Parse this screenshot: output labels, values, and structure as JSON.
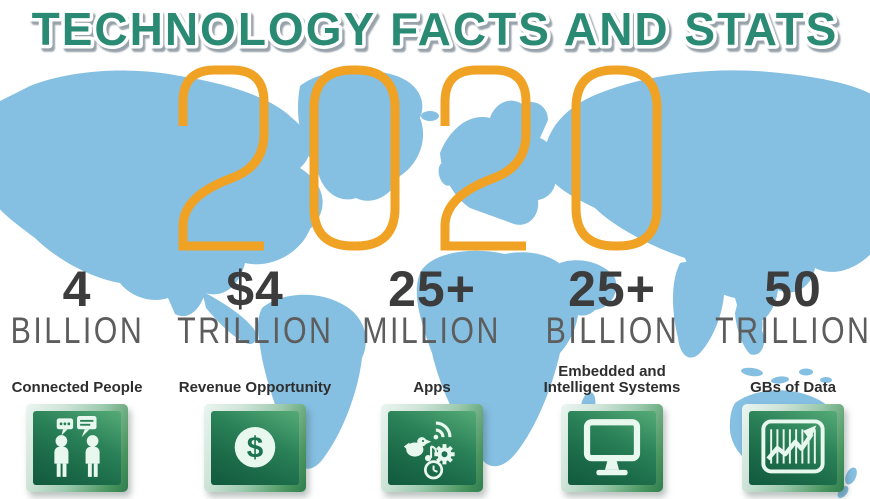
{
  "title": "TECHNOLOGY FACTS AND STATS",
  "year": "2020",
  "colors": {
    "title_teal": "#2b8a73",
    "year_orange": "#f0a225",
    "map_blue": "#85bfe2",
    "stat_number": "#3c3c3c",
    "stat_unit": "#5d5d5d",
    "stat_label": "#2e2e2e",
    "tile_green_dark": "#125a3e",
    "tile_green_light": "#55ab76",
    "icon_white": "#e9f8ef"
  },
  "stats": [
    {
      "value": "4",
      "unit": "BILLION",
      "label": "Connected People",
      "icon": "connected-people-icon"
    },
    {
      "value": "$4",
      "unit": "TRILLION",
      "label": "Revenue Opportunity",
      "icon": "dollar-icon",
      "glyph": "$"
    },
    {
      "value": "25+",
      "unit": "MILLION",
      "label": "Apps",
      "icon": "apps-icon"
    },
    {
      "value": "25+",
      "unit": "BILLION",
      "label": "Embedded and Intelligent Systems",
      "icon": "monitor-icon"
    },
    {
      "value": "50",
      "unit": "TRILLION",
      "label": "GBs of Data",
      "icon": "chart-growth-icon"
    }
  ],
  "chart_data": {
    "type": "table",
    "title": "TECHNOLOGY FACTS AND STATS",
    "subtitle": "2020",
    "categories": [
      "Connected People",
      "Revenue Opportunity",
      "Apps",
      "Embedded and Intelligent Systems",
      "GBs of Data"
    ],
    "values": [
      "4 BILLION",
      "$4 TRILLION",
      "25+ MILLION",
      "25+ BILLION",
      "50 TRILLION"
    ]
  }
}
